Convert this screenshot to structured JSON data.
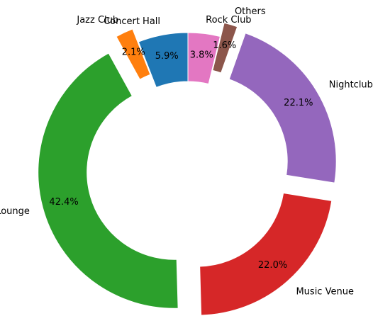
{
  "chart_data": {
    "type": "pie",
    "donut": true,
    "start_angle_deg": 90,
    "direction": "counterclockwise",
    "legend": "none",
    "slices": [
      {
        "label": "Concert Hall",
        "value": 5.9,
        "pct_label": "5.9%",
        "color": "#1f77b4",
        "explode": 0
      },
      {
        "label": "Jazz Club",
        "value": 2.1,
        "pct_label": "2.1%",
        "color": "#ff7f0e",
        "explode": 0.1
      },
      {
        "label": "Lounge",
        "value": 42.4,
        "pct_label": "42.4%",
        "color": "#2ca02c",
        "explode": 0.1
      },
      {
        "label": "Music Venue",
        "value": 22.0,
        "pct_label": "22.0%",
        "color": "#d62728",
        "explode": 0.1
      },
      {
        "label": "Nightclub",
        "value": 22.1,
        "pct_label": "22.1%",
        "color": "#9467bd",
        "explode": 0.1
      },
      {
        "label": "Others",
        "value": 1.6,
        "pct_label": "1.6%",
        "color": "#8c564b",
        "explode": 0.1
      },
      {
        "label": "Rock Club",
        "value": 3.8,
        "pct_label": "3.8%",
        "color": "#e377c2",
        "explode": 0
      }
    ]
  }
}
